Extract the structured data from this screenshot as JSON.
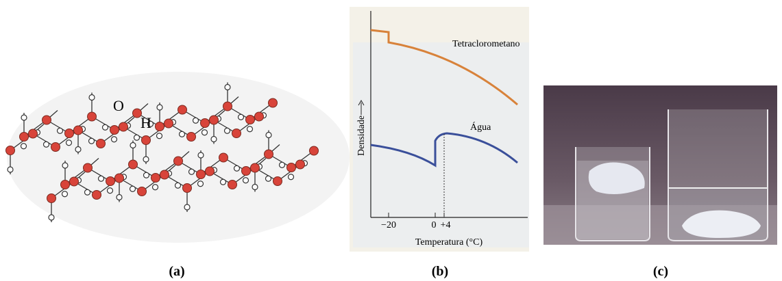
{
  "panel_a": {
    "labels": [
      "O",
      "H"
    ],
    "caption": "(a)"
  },
  "panel_b": {
    "curves": [
      "Tetraclorometano",
      "Água"
    ],
    "y_axis": "Densidade",
    "x_axis": "Temperatura (°C)",
    "x_ticks": [
      "−20",
      "0",
      "+4"
    ],
    "caption": "(b)"
  },
  "panel_c": {
    "caption": "(c)"
  }
}
